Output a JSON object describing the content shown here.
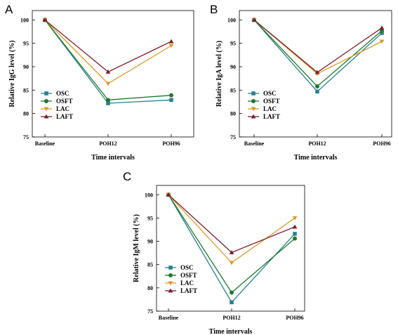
{
  "chart_data": [
    {
      "panel": "A",
      "type": "line",
      "categories": [
        "Baseline",
        "POH12",
        "POH96"
      ],
      "xlabel": "Time intervals",
      "ylabel": "Relative IgG level (%)",
      "ylim": [
        75,
        102
      ],
      "yticks": [
        75,
        80,
        85,
        90,
        95,
        100
      ],
      "legend_position": "lower-left",
      "series": [
        {
          "name": "OSC",
          "marker": "square",
          "color": "#2a7f8f",
          "values": [
            100,
            82.2,
            82.9
          ]
        },
        {
          "name": "OSFT",
          "marker": "circle",
          "color": "#1e7a2e",
          "values": [
            100,
            82.9,
            83.9
          ]
        },
        {
          "name": "LAC",
          "marker": "triangle-down",
          "color": "#d99a2b",
          "values": [
            100,
            86.4,
            94.5
          ]
        },
        {
          "name": "LAFT",
          "marker": "triangle-up",
          "color": "#7b1f2e",
          "values": [
            100,
            88.9,
            95.4
          ]
        }
      ]
    },
    {
      "panel": "B",
      "type": "line",
      "categories": [
        "Baseline",
        "POH12",
        "POH96"
      ],
      "xlabel": "Time intervals",
      "ylabel": "Relative IgA level (%)",
      "ylim": [
        75,
        102
      ],
      "yticks": [
        75,
        80,
        85,
        90,
        95,
        100
      ],
      "legend_position": "lower-left",
      "series": [
        {
          "name": "OSC",
          "marker": "square",
          "color": "#2a7f8f",
          "values": [
            100,
            84.7,
            97.2
          ]
        },
        {
          "name": "OSFT",
          "marker": "circle",
          "color": "#1e7a2e",
          "values": [
            100,
            85.8,
            97.7
          ]
        },
        {
          "name": "LAC",
          "marker": "triangle-down",
          "color": "#d99a2b",
          "values": [
            100,
            88.5,
            95.4
          ]
        },
        {
          "name": "LAFT",
          "marker": "triangle-up",
          "color": "#7b1f2e",
          "values": [
            100,
            88.8,
            98.3
          ]
        }
      ]
    },
    {
      "panel": "C",
      "type": "line",
      "categories": [
        "Baseline",
        "POH12",
        "POH96"
      ],
      "xlabel": "Time intervals",
      "ylabel": "Relative IgM level (%)",
      "ylim": [
        75,
        102
      ],
      "yticks": [
        75,
        80,
        85,
        90,
        95,
        100
      ],
      "legend_position": "lower-left",
      "series": [
        {
          "name": "OSC",
          "marker": "square",
          "color": "#2a7f8f",
          "values": [
            100,
            76.9,
            91.6
          ]
        },
        {
          "name": "OSFT",
          "marker": "circle",
          "color": "#1e7a2e",
          "values": [
            100,
            79.0,
            90.6
          ]
        },
        {
          "name": "LAC",
          "marker": "triangle-down",
          "color": "#d99a2b",
          "values": [
            100,
            85.4,
            95.0
          ]
        },
        {
          "name": "LAFT",
          "marker": "triangle-up",
          "color": "#7b1f2e",
          "values": [
            100,
            87.6,
            93.1
          ]
        }
      ]
    }
  ]
}
